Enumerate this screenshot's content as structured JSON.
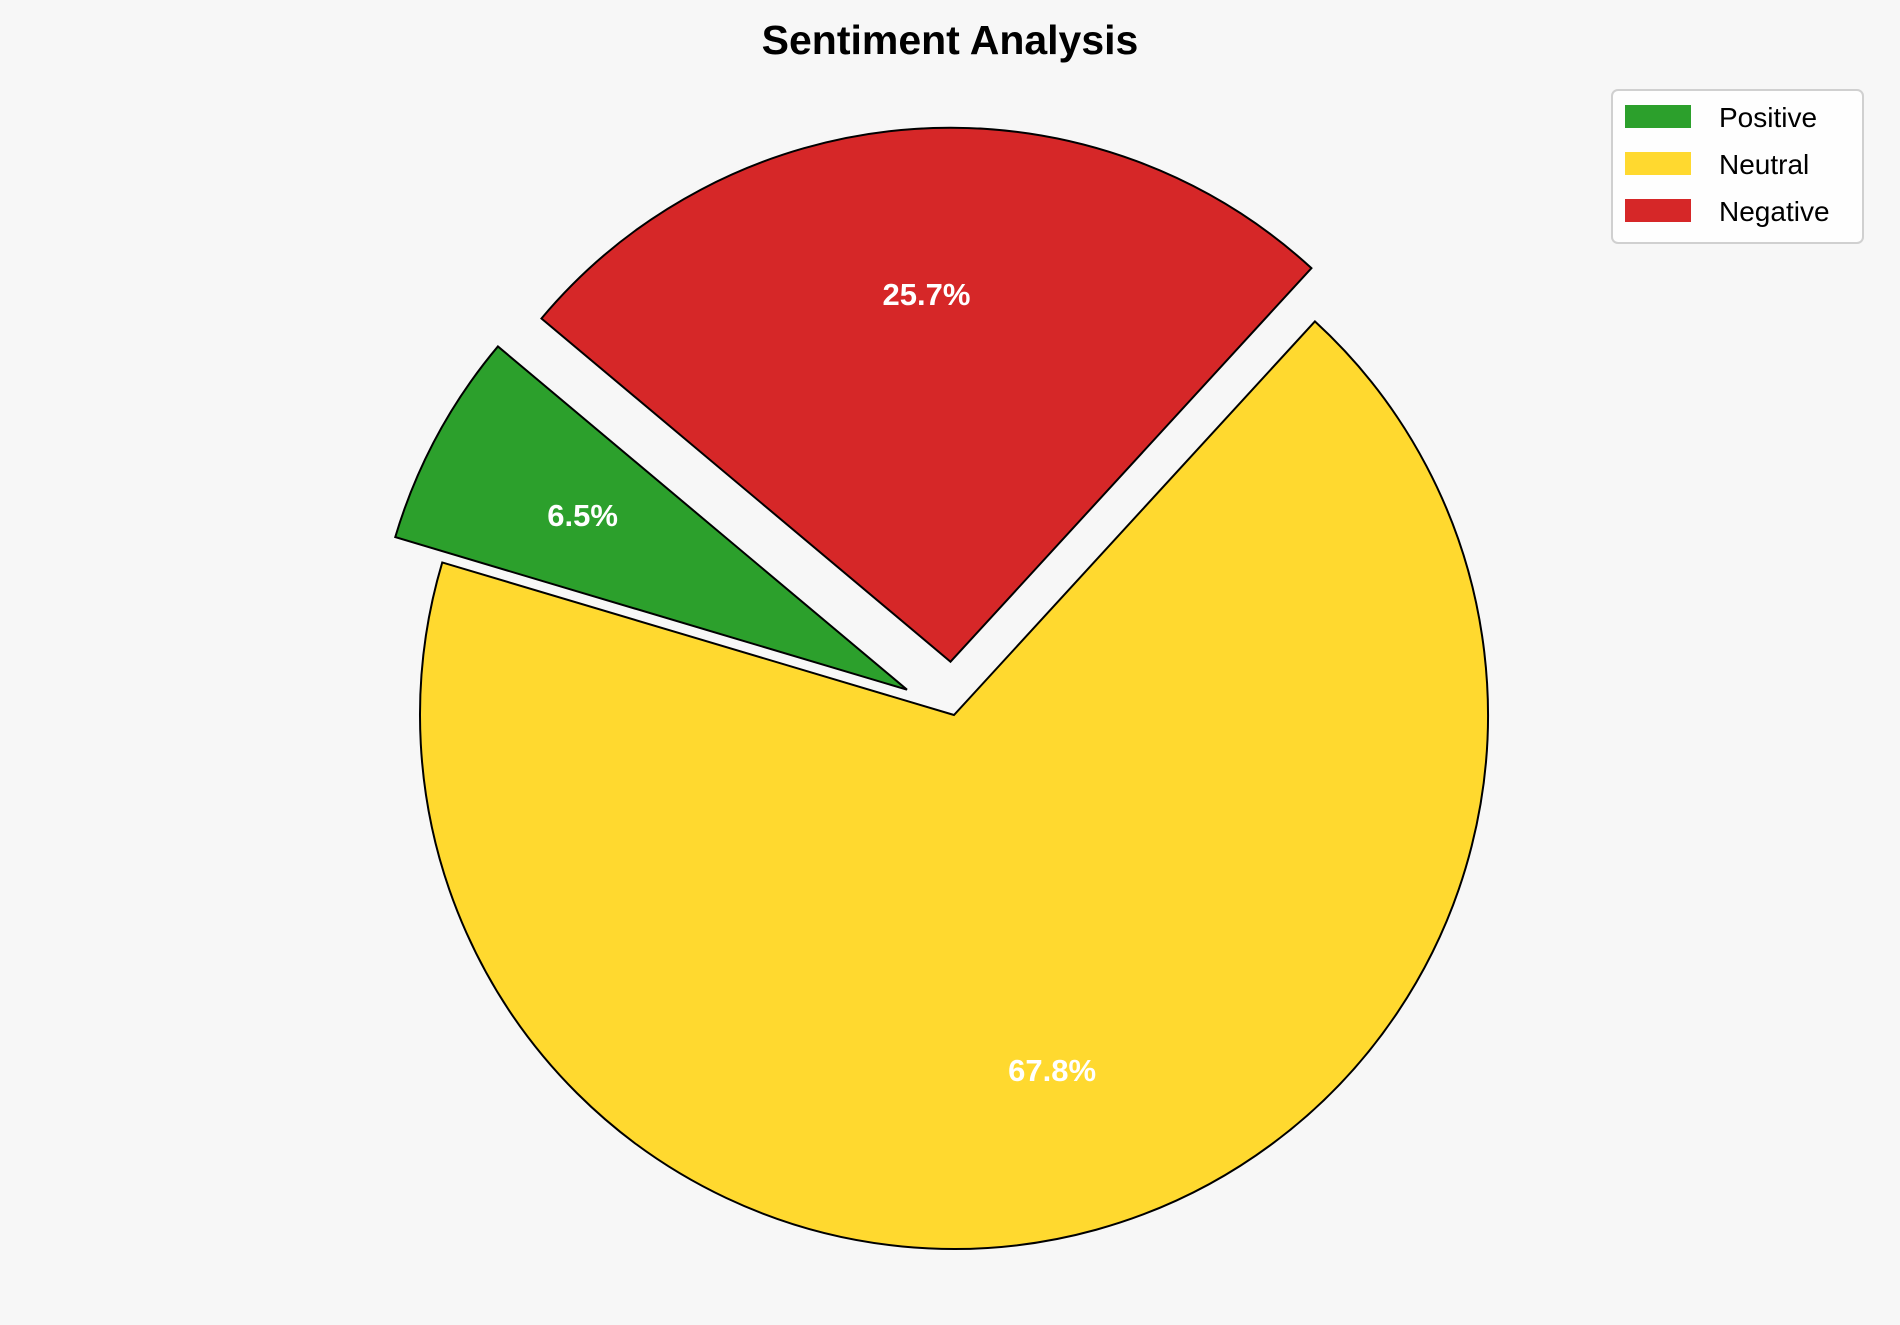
{
  "chart_data": {
    "type": "pie",
    "title": "Sentiment Analysis",
    "categories": [
      "Positive",
      "Neutral",
      "Negative"
    ],
    "values": [
      6.5,
      67.8,
      25.7
    ],
    "labels": [
      "6.5%",
      "67.8%",
      "25.7%"
    ],
    "colors": [
      "#2ca02c",
      "#ffd92f",
      "#d62728"
    ],
    "explode": [
      0.1,
      0,
      0.1
    ],
    "start_angle_deg": 140,
    "direction": "counterclockwise",
    "edge_color": "#000000",
    "legend_placement": "top-right",
    "background": "#f7f7f7"
  }
}
